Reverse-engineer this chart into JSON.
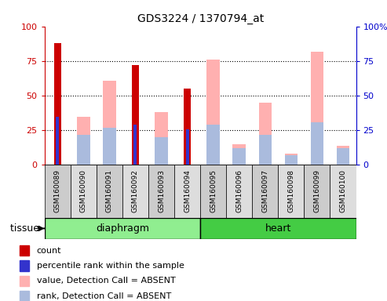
{
  "title": "GDS3224 / 1370794_at",
  "samples": [
    "GSM160089",
    "GSM160090",
    "GSM160091",
    "GSM160092",
    "GSM160093",
    "GSM160094",
    "GSM160095",
    "GSM160096",
    "GSM160097",
    "GSM160098",
    "GSM160099",
    "GSM160100"
  ],
  "red_bars": [
    88,
    0,
    0,
    72,
    0,
    55,
    0,
    0,
    0,
    0,
    0,
    0
  ],
  "blue_bars": [
    35,
    0,
    0,
    29,
    0,
    26,
    0,
    0,
    0,
    0,
    0,
    0
  ],
  "pink_bars": [
    0,
    35,
    61,
    0,
    38,
    0,
    76,
    15,
    45,
    8,
    82,
    14
  ],
  "ltblue_bars": [
    0,
    22,
    27,
    0,
    20,
    0,
    29,
    12,
    22,
    7,
    31,
    12
  ],
  "ylim": [
    0,
    100
  ],
  "yticks": [
    0,
    25,
    50,
    75,
    100
  ],
  "red_color": "#CC0000",
  "blue_color": "#3333CC",
  "pink_color": "#FFB0B0",
  "ltblue_color": "#AABBDD",
  "diaphragm_color": "#90EE90",
  "heart_color": "#44CC44",
  "diaphragm_label": "diaphragm",
  "heart_label": "heart",
  "tissue_label": "tissue",
  "title_fontsize": 10,
  "legend_items": [
    {
      "color": "#CC0000",
      "label": "count"
    },
    {
      "color": "#3333CC",
      "label": "percentile rank within the sample"
    },
    {
      "color": "#FFB0B0",
      "label": "value, Detection Call = ABSENT"
    },
    {
      "color": "#AABBDD",
      "label": "rank, Detection Call = ABSENT"
    }
  ],
  "left_ytick_color": "#CC0000",
  "right_ytick_color": "#0000CC",
  "right_ytick_labels": [
    "0",
    "25",
    "50",
    "75",
    "100%"
  ]
}
